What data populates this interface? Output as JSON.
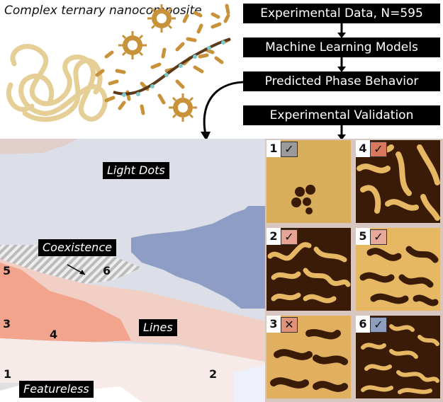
{
  "title": "Complex ternary nanocomposite",
  "flow": {
    "step1": "Experimental Data, N=595",
    "step2": "Machine Learning Models",
    "step3": "Predicted Phase Behavior",
    "step4": "Experimental Validation"
  },
  "phases": {
    "light_dots": "Light Dots",
    "coexistence": "Coexistence",
    "lines": "Lines",
    "featureless": "Featureless"
  },
  "map_points": [
    "1",
    "2",
    "3",
    "4",
    "5",
    "6"
  ],
  "validation": [
    {
      "id": "1",
      "result": "✓",
      "result_color": "#9a9a9a"
    },
    {
      "id": "2",
      "result": "✓",
      "result_color": "#e7a393"
    },
    {
      "id": "3",
      "result": "✕",
      "result_color": "#e09279"
    },
    {
      "id": "4",
      "result": "✓",
      "result_color": "#d9775f"
    },
    {
      "id": "5",
      "result": "✓",
      "result_color": "#e6a99a"
    },
    {
      "id": "6",
      "result": "✓",
      "result_color": "#8f9ec0"
    }
  ],
  "colors": {
    "light_dots": "#dcdfe8",
    "dark_dots": "#8e9dc6",
    "lines_salmon": "#f3a48d",
    "lines_light": "#f1cfc5",
    "featureless": "#f6ebe8",
    "polymer": "#e6cf96",
    "particle": "#c8923a",
    "afm_bright": "#e6b863",
    "afm_dark": "#3a1b08"
  }
}
